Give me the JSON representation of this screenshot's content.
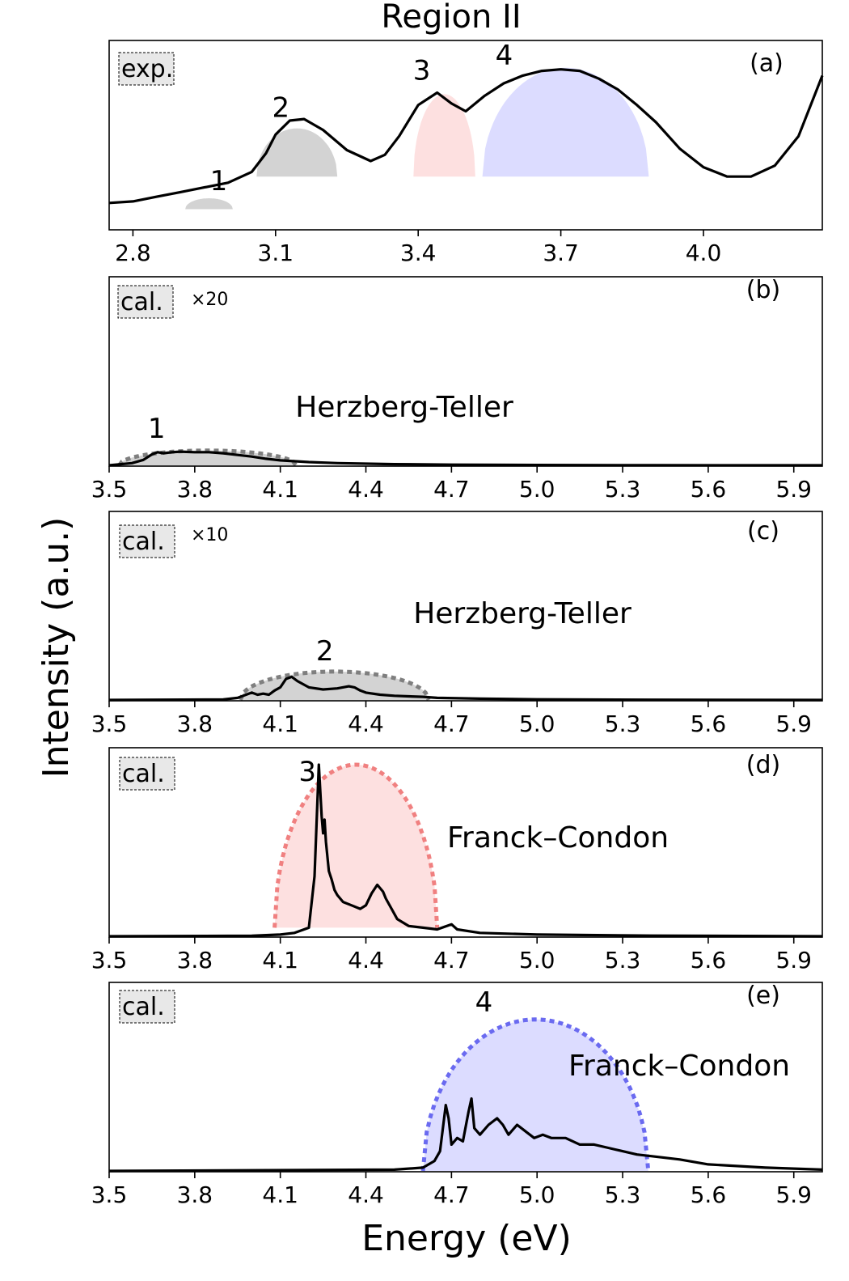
{
  "figure": {
    "title": "Region II",
    "xlabel": "Energy (eV)",
    "ylabel": "Intensity (a.u.)"
  },
  "colors": {
    "gray_fill": "#d3d3d3",
    "gray_dash": "#7f7f7f",
    "red_fill": "#fde0e0",
    "red_dash": "#f08080",
    "blue_fill": "#dcdcff",
    "blue_dash": "#6a6af0",
    "line": "#000000"
  },
  "chart_data": [
    {
      "type": "line",
      "panel": "(a)",
      "tag": "exp.",
      "multiplier": "",
      "note": "",
      "xlim": [
        2.75,
        4.25
      ],
      "ylim": [
        0,
        1
      ],
      "xticks": [
        2.8,
        3.1,
        3.4,
        3.7,
        4.0
      ],
      "x": [
        2.75,
        2.8,
        2.85,
        2.9,
        2.95,
        3.0,
        3.05,
        3.08,
        3.1,
        3.13,
        3.16,
        3.2,
        3.25,
        3.3,
        3.33,
        3.36,
        3.4,
        3.44,
        3.47,
        3.5,
        3.54,
        3.58,
        3.62,
        3.66,
        3.7,
        3.74,
        3.78,
        3.82,
        3.86,
        3.9,
        3.95,
        4.0,
        4.05,
        4.1,
        4.15,
        4.2,
        4.25
      ],
      "y": [
        0.1,
        0.11,
        0.14,
        0.17,
        0.2,
        0.23,
        0.3,
        0.42,
        0.54,
        0.63,
        0.64,
        0.57,
        0.44,
        0.37,
        0.41,
        0.53,
        0.73,
        0.81,
        0.74,
        0.69,
        0.79,
        0.87,
        0.92,
        0.95,
        0.96,
        0.95,
        0.9,
        0.83,
        0.73,
        0.62,
        0.45,
        0.33,
        0.27,
        0.27,
        0.34,
        0.53,
        0.92
      ],
      "bands": [
        {
          "label": "1",
          "center": 2.96,
          "half_width": 0.05,
          "height": 0.13,
          "base": 0.06,
          "color": "gray",
          "dashed": false
        },
        {
          "label": "2",
          "center": 3.145,
          "half_width": 0.085,
          "height": 0.58,
          "base": 0.27,
          "color": "gray",
          "dashed": false
        },
        {
          "label": "3",
          "center": 3.455,
          "half_width": 0.065,
          "height": 0.8,
          "base": 0.27,
          "color": "red",
          "dashed": false
        },
        {
          "label": "4",
          "center": 3.71,
          "half_width": 0.175,
          "height": 0.97,
          "base": 0.27,
          "color": "blue",
          "dashed": false
        }
      ]
    },
    {
      "type": "line",
      "panel": "(b)",
      "tag": "cal.",
      "multiplier": "×20",
      "note": "Herzberg-Teller",
      "xlim": [
        3.5,
        6.0
      ],
      "ylim": [
        0,
        1
      ],
      "xticks": [
        3.5,
        3.8,
        4.1,
        4.4,
        4.7,
        5.0,
        5.3,
        5.6,
        5.9
      ],
      "x": [
        3.5,
        3.58,
        3.62,
        3.65,
        3.67,
        3.69,
        3.72,
        3.75,
        3.8,
        3.85,
        3.9,
        3.95,
        4.0,
        4.05,
        4.1,
        4.2,
        4.3,
        4.5,
        4.7,
        5.0,
        5.4,
        6.0
      ],
      "y": [
        0,
        0.02,
        0.05,
        0.1,
        0.12,
        0.11,
        0.12,
        0.125,
        0.12,
        0.12,
        0.11,
        0.095,
        0.08,
        0.06,
        0.045,
        0.03,
        0.02,
        0.01,
        0.006,
        0.003,
        0.001,
        0.0
      ],
      "bands": [
        {
          "label": "1",
          "center": 3.845,
          "half_width": 0.31,
          "height": 0.135,
          "base": 0.0,
          "color": "gray",
          "dashed": true
        }
      ]
    },
    {
      "type": "line",
      "panel": "(c)",
      "tag": "cal.",
      "multiplier": "×10",
      "note": "Herzberg-Teller",
      "xlim": [
        3.5,
        6.0
      ],
      "ylim": [
        0,
        1
      ],
      "xticks": [
        3.5,
        3.8,
        4.1,
        4.4,
        4.7,
        5.0,
        5.3,
        5.6,
        5.9
      ],
      "x": [
        3.5,
        3.9,
        3.95,
        3.98,
        4.0,
        4.02,
        4.04,
        4.06,
        4.08,
        4.1,
        4.12,
        4.14,
        4.16,
        4.18,
        4.2,
        4.25,
        4.3,
        4.34,
        4.36,
        4.38,
        4.4,
        4.45,
        4.5,
        4.55,
        4.6,
        4.65,
        4.8,
        5.0,
        5.4,
        6.0
      ],
      "y": [
        0,
        0.005,
        0.02,
        0.05,
        0.07,
        0.05,
        0.06,
        0.05,
        0.09,
        0.12,
        0.2,
        0.22,
        0.18,
        0.15,
        0.12,
        0.1,
        0.11,
        0.13,
        0.12,
        0.09,
        0.07,
        0.05,
        0.04,
        0.035,
        0.03,
        0.02,
        0.012,
        0.006,
        0.002,
        0.0
      ],
      "bands": [
        {
          "label": "2",
          "center": 4.29,
          "half_width": 0.33,
          "height": 0.27,
          "base": 0.0,
          "color": "gray",
          "dashed": true
        }
      ]
    },
    {
      "type": "line",
      "panel": "(d)",
      "tag": "cal.",
      "multiplier": "",
      "note": "Franck–Condon",
      "xlim": [
        3.5,
        6.0
      ],
      "ylim": [
        0,
        1
      ],
      "xticks": [
        3.5,
        3.8,
        4.1,
        4.4,
        4.7,
        5.0,
        5.3,
        5.6,
        5.9
      ],
      "x": [
        3.5,
        4.0,
        4.1,
        4.15,
        4.2,
        4.22,
        4.235,
        4.245,
        4.25,
        4.255,
        4.26,
        4.27,
        4.28,
        4.29,
        4.3,
        4.32,
        4.35,
        4.38,
        4.4,
        4.42,
        4.44,
        4.46,
        4.47,
        4.49,
        4.51,
        4.55,
        4.6,
        4.65,
        4.7,
        4.72,
        4.8,
        5.0,
        5.4,
        6.0
      ],
      "y": [
        0,
        0.003,
        0.01,
        0.02,
        0.05,
        0.35,
        1.0,
        0.7,
        0.6,
        0.68,
        0.55,
        0.38,
        0.33,
        0.27,
        0.24,
        0.2,
        0.18,
        0.16,
        0.18,
        0.25,
        0.3,
        0.26,
        0.22,
        0.16,
        0.1,
        0.06,
        0.05,
        0.04,
        0.07,
        0.04,
        0.02,
        0.01,
        0.004,
        0.0
      ],
      "bands": [
        {
          "label": "3",
          "center": 4.365,
          "half_width": 0.285,
          "height": 1.0,
          "base": 0.05,
          "color": "red",
          "dashed": true
        }
      ]
    },
    {
      "type": "line",
      "panel": "(e)",
      "tag": "cal.",
      "multiplier": "",
      "note": "Franck–Condon",
      "xlim": [
        3.5,
        6.0
      ],
      "ylim": [
        0,
        1
      ],
      "xticks": [
        3.5,
        3.8,
        4.1,
        4.4,
        4.7,
        5.0,
        5.3,
        5.6,
        5.9
      ],
      "x": [
        3.5,
        4.5,
        4.6,
        4.64,
        4.66,
        4.68,
        4.69,
        4.7,
        4.72,
        4.74,
        4.76,
        4.77,
        4.78,
        4.8,
        4.83,
        4.86,
        4.88,
        4.9,
        4.93,
        4.96,
        4.99,
        5.02,
        5.05,
        5.1,
        5.15,
        5.2,
        5.25,
        5.3,
        5.35,
        5.4,
        5.5,
        5.6,
        5.8,
        6.0
      ],
      "y": [
        0,
        0.004,
        0.01,
        0.03,
        0.06,
        0.2,
        0.16,
        0.08,
        0.1,
        0.09,
        0.18,
        0.22,
        0.13,
        0.11,
        0.14,
        0.16,
        0.14,
        0.11,
        0.14,
        0.12,
        0.1,
        0.11,
        0.1,
        0.1,
        0.08,
        0.08,
        0.07,
        0.06,
        0.05,
        0.045,
        0.035,
        0.02,
        0.01,
        0.004
      ],
      "bands": [
        {
          "label": "4",
          "center": 4.995,
          "half_width": 0.395,
          "height": 0.46,
          "base": 0.0,
          "color": "blue",
          "dashed": true
        }
      ]
    }
  ]
}
